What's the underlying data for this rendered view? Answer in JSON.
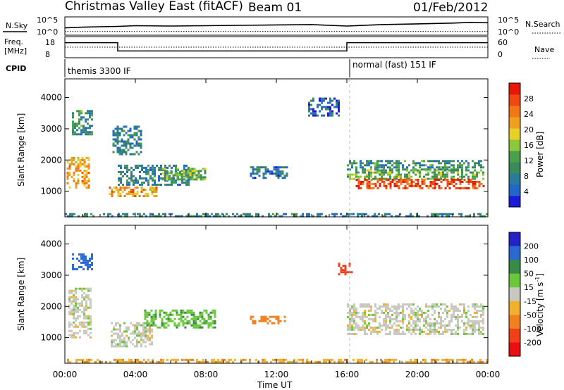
{
  "header": {
    "title": "Christmas Valley East (fitACF)",
    "beam": "Beam 01",
    "date": "01/Feb/2012"
  },
  "top_panels": {
    "nsky_label": "N.Sky",
    "nsky_ticks": [
      "10^5",
      "10^0"
    ],
    "nsearch_label": "N.Search",
    "nsearch_ticks": [
      "10^5",
      "10^0"
    ],
    "freq_label": "Freq.",
    "freq_unit": "[MHz]",
    "freq_ticks": [
      "18",
      "8"
    ],
    "nave_label": "Nave",
    "nave_ticks": [
      "60",
      "0"
    ],
    "cpid_label": "CPID",
    "cpid_modes": [
      "themis 3300 IF",
      "normal (fast) 151 IF"
    ]
  },
  "chart_data": [
    {
      "type": "line",
      "name": "noise-panel",
      "x": [
        0,
        1,
        2,
        3,
        4,
        6,
        8,
        10,
        12,
        14,
        16,
        18,
        20,
        22,
        23,
        24
      ],
      "series": [
        {
          "name": "N.Sky",
          "values": [
            2.0,
            2.2,
            2.3,
            2.4,
            2.6,
            2.5,
            2.6,
            2.7,
            2.8,
            2.9,
            2.5,
            2.9,
            3.1,
            3.3,
            3.5,
            3.4
          ]
        },
        {
          "name": "N.Search",
          "values": [
            1.0,
            1.0,
            1.0,
            1.0,
            1.0,
            1.0,
            1.0,
            1.0,
            1.0,
            1.0,
            1.0,
            1.0,
            1.0,
            1.0,
            1.0,
            1.0
          ]
        }
      ]
    },
    {
      "type": "line",
      "name": "freq-nave-panel",
      "x": [
        0,
        1,
        3,
        15,
        16,
        23.5,
        24
      ],
      "series": [
        {
          "name": "Freq",
          "values": [
            16,
            16,
            10.5,
            10.5,
            16,
            16,
            16
          ]
        },
        {
          "name": "Nave",
          "values": [
            30,
            30,
            30,
            30,
            30,
            30,
            30
          ]
        }
      ],
      "cpid_switch_hours": [
        1,
        16
      ]
    },
    {
      "type": "heatmap",
      "name": "power-panel",
      "xlabel": "",
      "ylabel": "Slant Range [km]",
      "xlim": [
        0,
        24
      ],
      "ylim": [
        180,
        4600
      ],
      "y_ticks": [
        1000,
        2000,
        3000,
        4000
      ],
      "colorbar": {
        "label": "Power [dB]",
        "range": [
          0,
          32
        ],
        "ticks": [
          4,
          8,
          12,
          16,
          20,
          24,
          28
        ],
        "colors": [
          "#1a1ad8",
          "#2166c8",
          "#2a7a9a",
          "#3c8a5a",
          "#4aa04a",
          "#8cc83c",
          "#e8d028",
          "#f0a020",
          "#f07818",
          "#f04810",
          "#e81808"
        ]
      },
      "regions": [
        {
          "t": [
            0.1,
            1.4
          ],
          "r": [
            1100,
            2100
          ],
          "value": 22
        },
        {
          "t": [
            0.4,
            1.5
          ],
          "r": [
            2800,
            3600
          ],
          "value": 10
        },
        {
          "t": [
            2.7,
            4.3
          ],
          "r": [
            2200,
            3100
          ],
          "value": 8
        },
        {
          "t": [
            2.5,
            5.2
          ],
          "r": [
            850,
            1150
          ],
          "value": 22
        },
        {
          "t": [
            3.0,
            7.0
          ],
          "r": [
            1200,
            1850
          ],
          "value": 8
        },
        {
          "t": [
            5.5,
            8.0
          ],
          "r": [
            1400,
            1750
          ],
          "value": 14
        },
        {
          "t": [
            10.5,
            12.6
          ],
          "r": [
            1400,
            1800
          ],
          "value": 7
        },
        {
          "t": [
            13.8,
            15.5
          ],
          "r": [
            3400,
            4000
          ],
          "value": 5
        },
        {
          "t": [
            16.0,
            23.8
          ],
          "r": [
            1700,
            2000
          ],
          "value": 10
        },
        {
          "t": [
            16.0,
            23.8
          ],
          "r": [
            1400,
            1700
          ],
          "value": 14
        },
        {
          "t": [
            16.5,
            23.8
          ],
          "r": [
            1100,
            1400
          ],
          "value": 28
        },
        {
          "t": [
            0.0,
            24.0
          ],
          "r": [
            200,
            300
          ],
          "value": 8
        }
      ]
    },
    {
      "type": "heatmap",
      "name": "velocity-panel",
      "xlabel": "Time UT",
      "ylabel": "Slant Range [km]",
      "xlim": [
        0,
        24
      ],
      "ylim": [
        180,
        4600
      ],
      "x_ticks": [
        "00:00",
        "04:00",
        "08:00",
        "12:00",
        "16:00",
        "20:00",
        "00:00"
      ],
      "y_ticks": [
        1000,
        2000,
        3000,
        4000
      ],
      "colorbar": {
        "label": "Velocity [m s^-1]",
        "ticks": [
          200,
          100,
          50,
          15,
          -15,
          -50,
          -100,
          -200
        ],
        "colors": [
          "#2222c8",
          "#2a6ad0",
          "#3a8a4a",
          "#6ac83a",
          "#c8c8c0",
          "#f0b030",
          "#f08020",
          "#f04018",
          "#e81010"
        ]
      },
      "regions": [
        {
          "t": [
            0.2,
            1.5
          ],
          "r": [
            1000,
            2600
          ],
          "value": 0
        },
        {
          "t": [
            0.4,
            1.5
          ],
          "r": [
            3200,
            3700
          ],
          "value": 150
        },
        {
          "t": [
            2.6,
            5.0
          ],
          "r": [
            700,
            1500
          ],
          "value": 0
        },
        {
          "t": [
            4.5,
            8.5
          ],
          "r": [
            1300,
            1900
          ],
          "value": 40
        },
        {
          "t": [
            10.5,
            12.6
          ],
          "r": [
            1450,
            1700
          ],
          "value": -80
        },
        {
          "t": [
            15.5,
            16.3
          ],
          "r": [
            3000,
            3400
          ],
          "value": -180
        },
        {
          "t": [
            16.0,
            23.8
          ],
          "r": [
            1100,
            2100
          ],
          "value": 0
        },
        {
          "t": [
            0.0,
            24.0
          ],
          "r": [
            200,
            320
          ],
          "value": -40
        }
      ]
    }
  ]
}
